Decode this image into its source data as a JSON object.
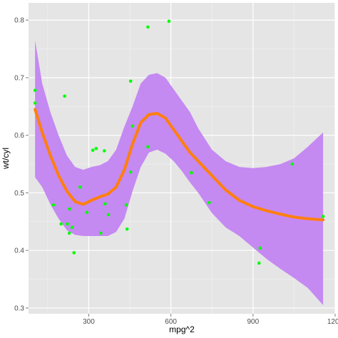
{
  "chart_data": {
    "type": "scatter",
    "title": "",
    "xlabel": "mpg^2",
    "ylabel": "wt/cyl",
    "xlim": [
      80,
      1200
    ],
    "ylim": [
      0.29,
      0.83
    ],
    "x_ticks": [
      300,
      600,
      900,
      1200
    ],
    "y_ticks": [
      0.3,
      0.4,
      0.5,
      0.6,
      0.7,
      0.8
    ],
    "y_tick_labels": [
      "0.3",
      "0.4",
      "0.5",
      "0.6",
      "0.7",
      "0.8"
    ],
    "grid": true,
    "colors": {
      "panel": "#e5e5e5",
      "grid_major": "#ffffff",
      "grid_minor": "#f2f2f2",
      "points": "#00ff00",
      "ribbon": "#c589f2",
      "smooth_line": "#ff7f0e"
    },
    "points": [
      {
        "x": 104,
        "y": 0.656
      },
      {
        "x": 104,
        "y": 0.678
      },
      {
        "x": 171,
        "y": 0.479
      },
      {
        "x": 199,
        "y": 0.446
      },
      {
        "x": 212,
        "y": 0.668
      },
      {
        "x": 222,
        "y": 0.446
      },
      {
        "x": 229,
        "y": 0.43
      },
      {
        "x": 230,
        "y": 0.472
      },
      {
        "x": 239,
        "y": 0.44
      },
      {
        "x": 246,
        "y": 0.396
      },
      {
        "x": 268,
        "y": 0.51
      },
      {
        "x": 293,
        "y": 0.466
      },
      {
        "x": 315,
        "y": 0.574
      },
      {
        "x": 327,
        "y": 0.577
      },
      {
        "x": 344,
        "y": 0.43
      },
      {
        "x": 357,
        "y": 0.573
      },
      {
        "x": 360,
        "y": 0.481
      },
      {
        "x": 372,
        "y": 0.462
      },
      {
        "x": 437,
        "y": 0.479
      },
      {
        "x": 440,
        "y": 0.437
      },
      {
        "x": 453,
        "y": 0.536
      },
      {
        "x": 453,
        "y": 0.694
      },
      {
        "x": 460,
        "y": 0.616
      },
      {
        "x": 516,
        "y": 0.58
      },
      {
        "x": 516,
        "y": 0.788
      },
      {
        "x": 593,
        "y": 0.798
      },
      {
        "x": 675,
        "y": 0.535
      },
      {
        "x": 740,
        "y": 0.483
      },
      {
        "x": 922,
        "y": 0.378
      },
      {
        "x": 926,
        "y": 0.404
      },
      {
        "x": 1043,
        "y": 0.55
      },
      {
        "x": 1156,
        "y": 0.459
      }
    ],
    "smooth": {
      "x": [
        104,
        130,
        160,
        190,
        220,
        250,
        280,
        310,
        340,
        370,
        400,
        430,
        460,
        490,
        520,
        550,
        580,
        610,
        640,
        670,
        700,
        750,
        800,
        850,
        900,
        950,
        1000,
        1050,
        1100,
        1156
      ],
      "y": [
        0.645,
        0.605,
        0.565,
        0.53,
        0.503,
        0.485,
        0.48,
        0.487,
        0.493,
        0.498,
        0.51,
        0.54,
        0.585,
        0.622,
        0.636,
        0.638,
        0.63,
        0.61,
        0.59,
        0.57,
        0.555,
        0.53,
        0.505,
        0.487,
        0.476,
        0.469,
        0.463,
        0.458,
        0.455,
        0.453
      ],
      "lower": [
        0.527,
        0.51,
        0.48,
        0.455,
        0.435,
        0.427,
        0.425,
        0.425,
        0.425,
        0.425,
        0.432,
        0.455,
        0.503,
        0.545,
        0.57,
        0.575,
        0.568,
        0.555,
        0.538,
        0.518,
        0.5,
        0.465,
        0.44,
        0.425,
        0.405,
        0.385,
        0.368,
        0.352,
        0.335,
        0.305
      ],
      "upper": [
        0.765,
        0.69,
        0.64,
        0.6,
        0.565,
        0.545,
        0.54,
        0.545,
        0.548,
        0.555,
        0.575,
        0.615,
        0.65,
        0.69,
        0.705,
        0.708,
        0.7,
        0.68,
        0.66,
        0.64,
        0.612,
        0.575,
        0.555,
        0.545,
        0.543,
        0.545,
        0.55,
        0.56,
        0.58,
        0.605
      ]
    }
  }
}
